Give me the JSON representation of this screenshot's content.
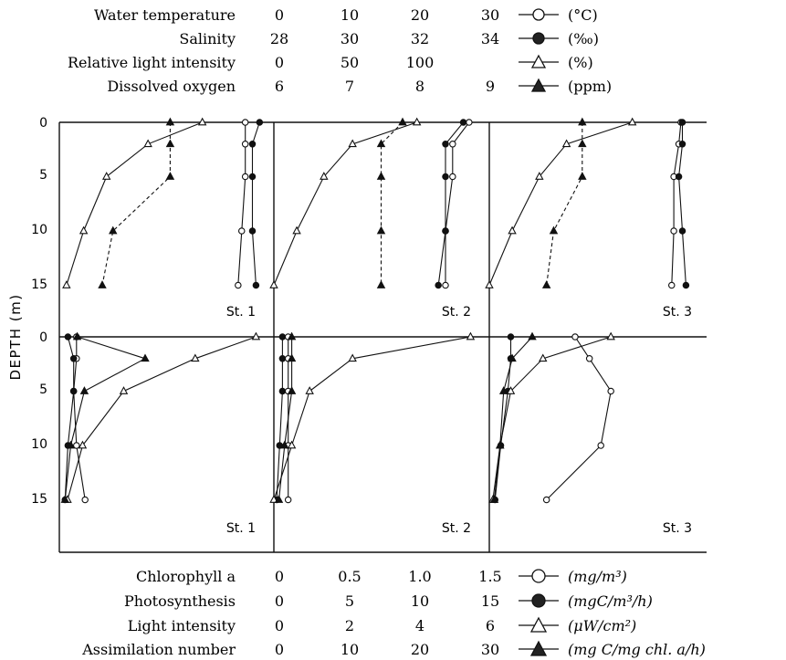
{
  "chart_data": {
    "type": "line",
    "ylabel": "DEPTH (m)",
    "yticks": [
      "0",
      "5",
      "10",
      "15"
    ],
    "ylim": [
      0,
      19
    ],
    "y_inverted": true,
    "top_scales": [
      {
        "name": "Water temperature",
        "ticks": [
          "0",
          "10",
          "20",
          "30"
        ],
        "min": 0,
        "max": 30,
        "unit": "(°C)",
        "marker": "open-circle"
      },
      {
        "name": "Salinity",
        "ticks": [
          "28",
          "30",
          "32",
          "34"
        ],
        "min": 28,
        "max": 34,
        "unit": "(‰)",
        "marker": "filled-circle"
      },
      {
        "name": "Relative light intensity",
        "ticks": [
          "0",
          "50",
          "100"
        ],
        "min": 0,
        "max": 150,
        "unit": "(%)",
        "marker": "open-triangle"
      },
      {
        "name": "Dissolved oxygen",
        "ticks": [
          "6",
          "7",
          "8",
          "9"
        ],
        "min": 6,
        "max": 9,
        "unit": "(ppm)",
        "marker": "filled-triangle"
      }
    ],
    "bottom_scales": [
      {
        "name": "Chlorophyll a",
        "ticks": [
          "0",
          "0.5",
          "1.0",
          "1.5"
        ],
        "min": 0,
        "max": 1.5,
        "unit": "(mg/m³)",
        "marker": "open-circle"
      },
      {
        "name": "Photosynthesis",
        "ticks": [
          "0",
          "5",
          "10",
          "15"
        ],
        "min": 0,
        "max": 15,
        "unit": "(mgC/m³/h)",
        "marker": "filled-circle"
      },
      {
        "name": "Light intensity",
        "ticks": [
          "0",
          "2",
          "4",
          "6"
        ],
        "min": 0,
        "max": 6,
        "unit": "(μW/cm²)",
        "marker": "open-triangle"
      },
      {
        "name": "Assimilation number",
        "ticks": [
          "0",
          "10",
          "20",
          "30"
        ],
        "min": 0,
        "max": 30,
        "unit": "(mg C/mg chl. a/h)",
        "marker": "filled-triangle"
      }
    ],
    "top_panels": [
      {
        "station": "St. 1",
        "depths": [
          0,
          2,
          5,
          10,
          15
        ],
        "series": [
          {
            "name": "Water temperature",
            "values": [
              26.0,
              26.0,
              26.0,
              25.5,
              25.0
            ]
          },
          {
            "name": "Salinity",
            "values": [
              33.6,
              33.4,
              33.4,
              33.4,
              33.5
            ]
          },
          {
            "name": "Relative light intensity",
            "values": [
              100,
              62,
              33,
              17,
              5
            ]
          },
          {
            "name": "Dissolved oxygen",
            "values": [
              7.55,
              7.55,
              7.55,
              6.75,
              6.6
            ]
          }
        ]
      },
      {
        "station": "St. 2",
        "depths": [
          0,
          2,
          5,
          10,
          15
        ],
        "series": [
          {
            "name": "Water temperature",
            "values": [
              27.3,
              25.0,
              25.0,
              24.0,
              24.0
            ]
          },
          {
            "name": "Salinity",
            "values": [
              33.3,
              32.8,
              32.8,
              32.8,
              32.6
            ]
          },
          {
            "name": "Relative light intensity",
            "values": [
              100,
              55,
              35,
              16,
              0
            ]
          },
          {
            "name": "Dissolved oxygen",
            "values": [
              7.8,
              7.5,
              7.5,
              7.5,
              7.5
            ]
          }
        ]
      },
      {
        "station": "St. 3",
        "depths": [
          0,
          2,
          5,
          10,
          15
        ],
        "series": [
          {
            "name": "Water temperature",
            "values": [
              26.8,
              26.5,
              25.8,
              25.8,
              25.5
            ]
          },
          {
            "name": "Salinity",
            "values": [
              33.4,
              33.4,
              33.3,
              33.4,
              33.5
            ]
          },
          {
            "name": "Relative light intensity",
            "values": [
              100,
              54,
              35,
              16,
              0
            ]
          },
          {
            "name": "Dissolved oxygen",
            "values": [
              7.3,
              7.3,
              7.3,
              6.9,
              6.8
            ]
          }
        ]
      }
    ],
    "bottom_panels": [
      {
        "station": "St. 1",
        "depths": [
          0,
          2,
          5,
          10,
          15
        ],
        "series": [
          {
            "name": "Chlorophyll a",
            "values": [
              0.12,
              0.12,
              0.1,
              0.12,
              0.18
            ]
          },
          {
            "name": "Photosynthesis",
            "values": [
              0.6,
              1.0,
              1.0,
              0.6,
              0.4
            ]
          },
          {
            "name": "Light intensity",
            "values": [
              5.5,
              3.8,
              1.8,
              0.65,
              0.23
            ]
          },
          {
            "name": "Assimilation number",
            "values": [
              2.5,
              12.0,
              3.5,
              1.6,
              0.8
            ]
          }
        ]
      },
      {
        "station": "St. 2",
        "depths": [
          0,
          2,
          5,
          10,
          15
        ],
        "series": [
          {
            "name": "Chlorophyll a",
            "values": [
              0.1,
              0.1,
              0.1,
              0.1,
              0.1
            ]
          },
          {
            "name": "Photosynthesis",
            "values": [
              0.6,
              0.6,
              0.6,
              0.4,
              0.2
            ]
          },
          {
            "name": "Light intensity",
            "values": [
              5.5,
              2.2,
              1.0,
              0.5,
              0.0
            ]
          },
          {
            "name": "Assimilation number",
            "values": [
              2.5,
              2.5,
              2.5,
              1.5,
              0.7
            ]
          }
        ]
      },
      {
        "station": "St. 3",
        "depths": [
          0,
          2,
          5,
          10,
          15
        ],
        "series": [
          {
            "name": "Chlorophyll a",
            "values": [
              0.6,
              0.7,
              0.85,
              0.78,
              0.4
            ]
          },
          {
            "name": "Photosynthesis",
            "values": [
              1.5,
              1.5,
              1.3,
              0.8,
              0.4
            ]
          },
          {
            "name": "Light intensity",
            "values": [
              3.4,
              1.5,
              0.6,
              0.3,
              0.1
            ]
          },
          {
            "name": "Assimilation number",
            "values": [
              6.0,
              3.2,
              2.0,
              1.5,
              0.7
            ]
          }
        ]
      }
    ]
  }
}
